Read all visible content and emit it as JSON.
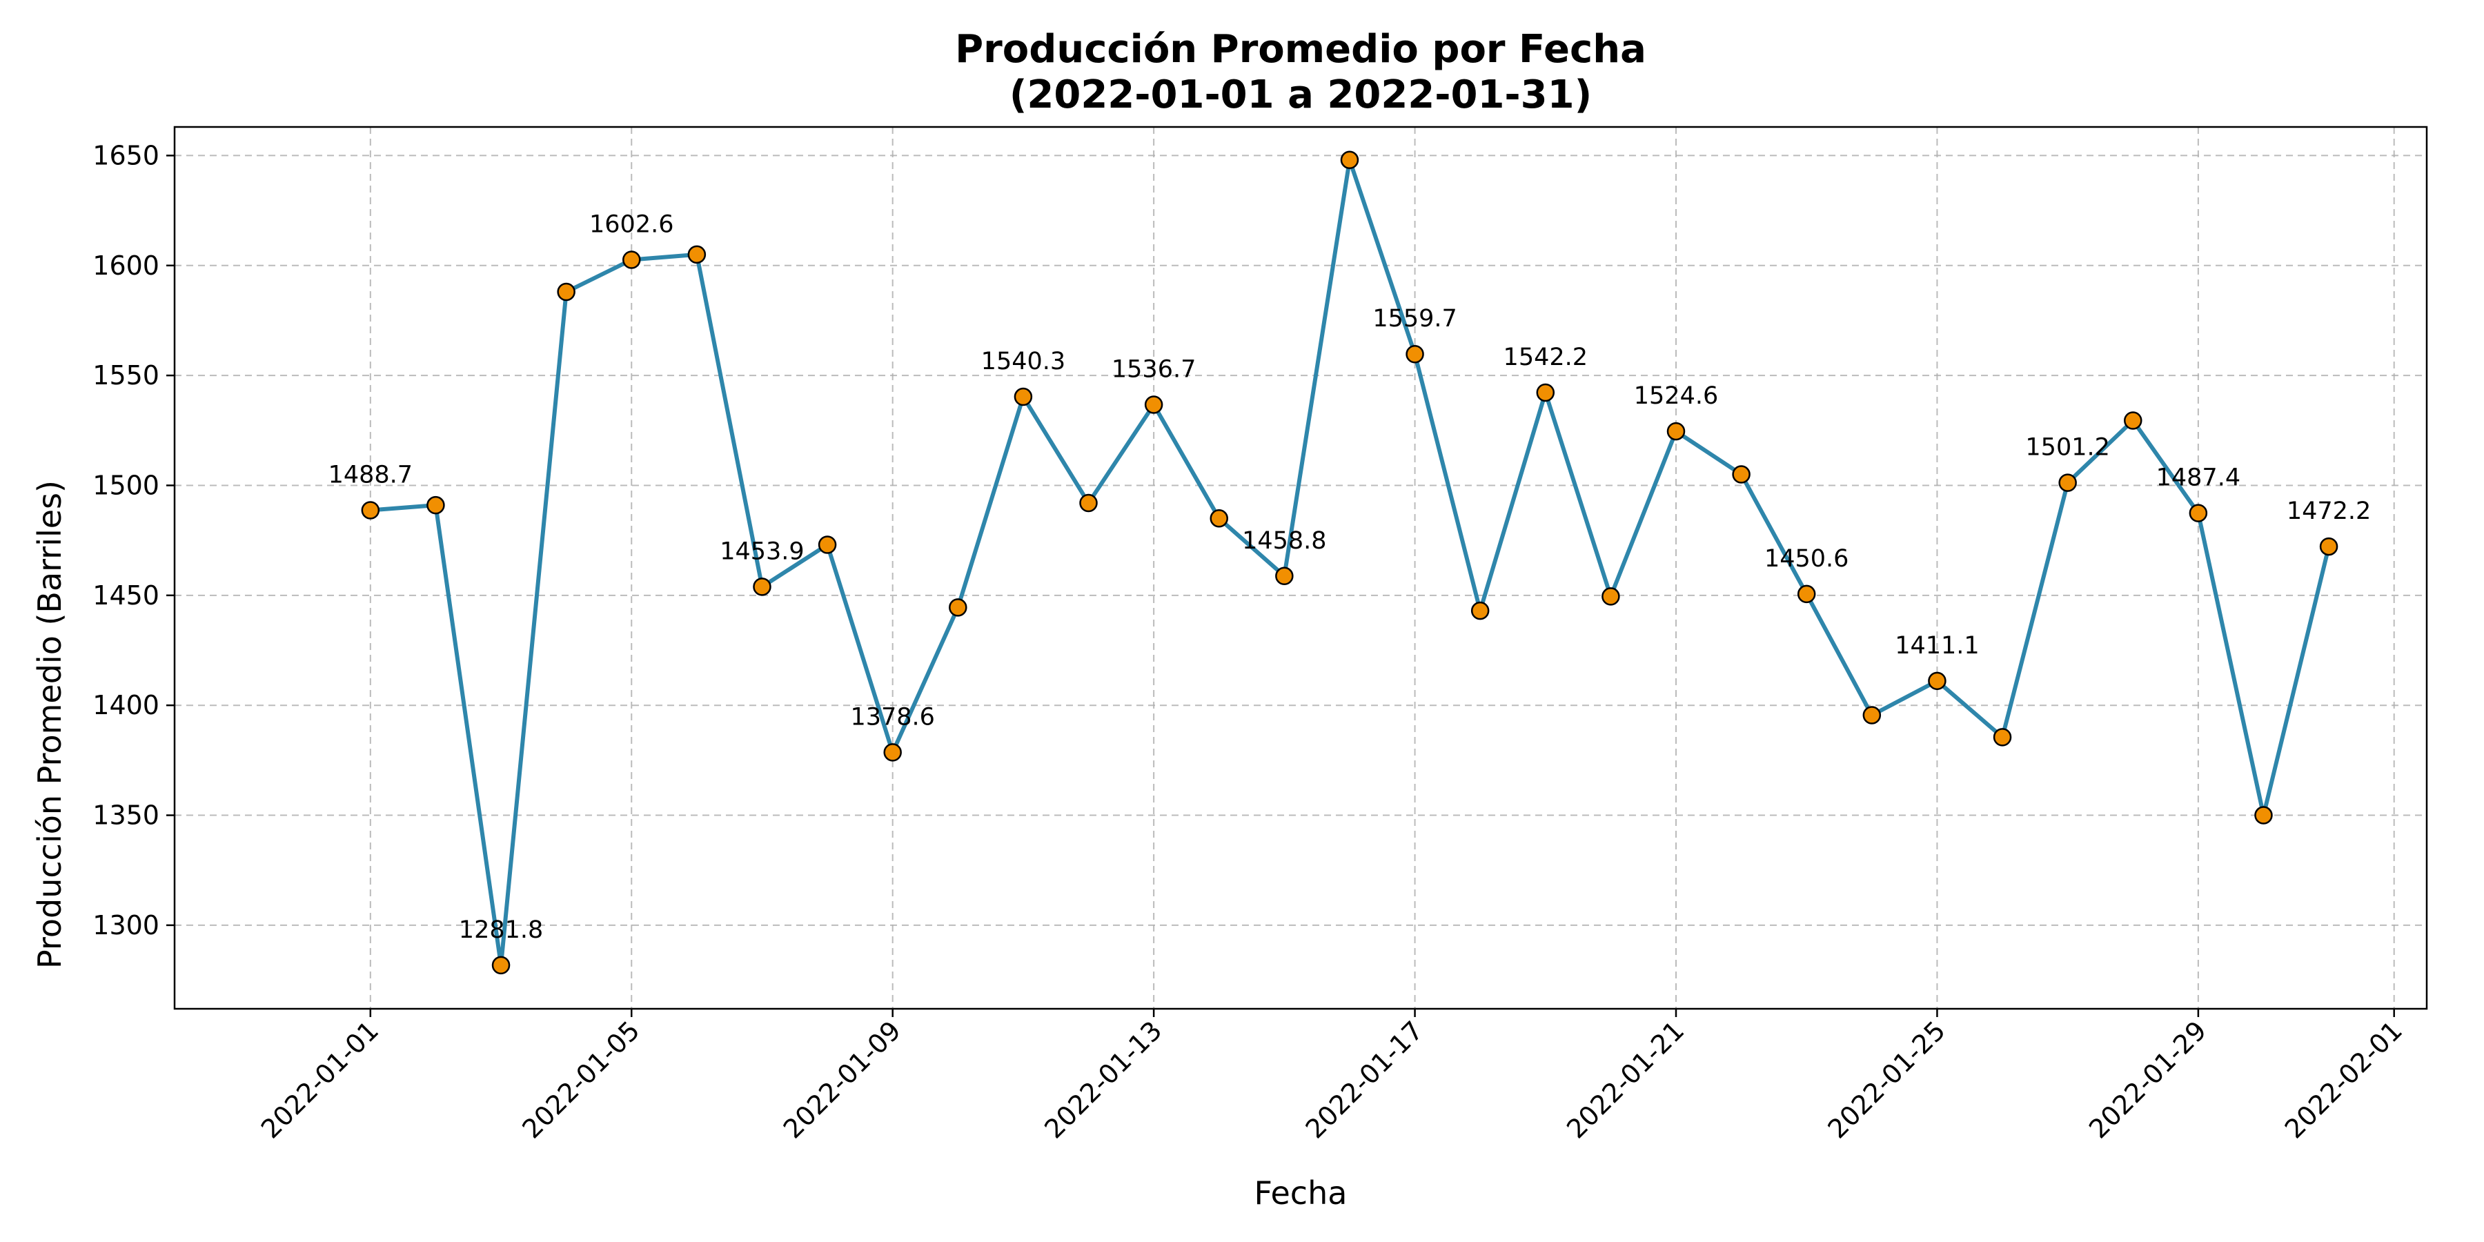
{
  "chart_data": {
    "type": "line",
    "title_line1": "Producción Promedio por Fecha",
    "title_line2": "(2022-01-01 a 2022-01-31)",
    "xlabel": "Fecha",
    "ylabel": "Producción Promedio (Barriles)",
    "x": [
      "2022-01-01",
      "2022-01-02",
      "2022-01-03",
      "2022-01-04",
      "2022-01-05",
      "2022-01-06",
      "2022-01-07",
      "2022-01-08",
      "2022-01-09",
      "2022-01-10",
      "2022-01-11",
      "2022-01-12",
      "2022-01-13",
      "2022-01-14",
      "2022-01-15",
      "2022-01-16",
      "2022-01-17",
      "2022-01-18",
      "2022-01-19",
      "2022-01-20",
      "2022-01-21",
      "2022-01-22",
      "2022-01-23",
      "2022-01-24",
      "2022-01-25",
      "2022-01-26",
      "2022-01-27",
      "2022-01-28",
      "2022-01-29",
      "2022-01-30",
      "2022-01-31"
    ],
    "series": [
      {
        "values": [
          1488.7,
          1491.0,
          1281.8,
          1588.0,
          1602.6,
          1605.0,
          1453.9,
          1473.0,
          1378.6,
          1444.5,
          1540.3,
          1492.0,
          1536.7,
          1485.0,
          1458.8,
          1648.0,
          1559.7,
          1443.0,
          1542.2,
          1449.5,
          1524.6,
          1505.0,
          1450.6,
          1395.5,
          1411.1,
          1385.5,
          1501.2,
          1529.5,
          1487.4,
          1350.0,
          1472.2
        ],
        "color": "#2e86ab",
        "marker_color": "#f18f01"
      }
    ],
    "data_labels": [
      {
        "x": "2022-01-01",
        "text": "1488.7"
      },
      {
        "x": "2022-01-03",
        "text": "1281.8"
      },
      {
        "x": "2022-01-05",
        "text": "1602.6"
      },
      {
        "x": "2022-01-07",
        "text": "1453.9"
      },
      {
        "x": "2022-01-09",
        "text": "1378.6"
      },
      {
        "x": "2022-01-11",
        "text": "1540.3"
      },
      {
        "x": "2022-01-13",
        "text": "1536.7"
      },
      {
        "x": "2022-01-15",
        "text": "1458.8"
      },
      {
        "x": "2022-01-17",
        "text": "1559.7"
      },
      {
        "x": "2022-01-19",
        "text": "1542.2"
      },
      {
        "x": "2022-01-21",
        "text": "1524.6"
      },
      {
        "x": "2022-01-23",
        "text": "1450.6"
      },
      {
        "x": "2022-01-25",
        "text": "1411.1"
      },
      {
        "x": "2022-01-27",
        "text": "1501.2"
      },
      {
        "x": "2022-01-29",
        "text": "1487.4"
      },
      {
        "x": "2022-01-31",
        "text": "1472.2"
      }
    ],
    "xticks": [
      "2022-01-01",
      "2022-01-05",
      "2022-01-09",
      "2022-01-13",
      "2022-01-17",
      "2022-01-21",
      "2022-01-25",
      "2022-01-29",
      "2022-02-01"
    ],
    "yticks": [
      1300,
      1350,
      1400,
      1450,
      1500,
      1550,
      1600,
      1650
    ],
    "xlim": [
      "2021-12-29",
      "2022-02-01"
    ],
    "ylim": [
      1262,
      1663
    ],
    "grid": true,
    "grid_style": "dashed",
    "xtick_rotation": 45
  }
}
